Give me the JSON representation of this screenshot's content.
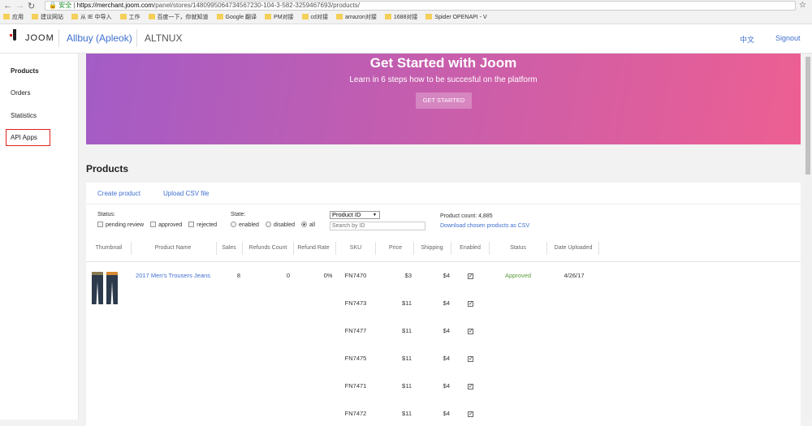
{
  "browser": {
    "security": "安全",
    "url_host": "https://merchant.joom.com",
    "url_path": "/panel/stores/1480995064734567230-104-3-582-3259467693/products/",
    "bookmarks": [
      "应用",
      "建议网站",
      "从 IE 中导入",
      "工作",
      "百度一下，你就知道",
      "Google 翻译",
      "PM对接",
      "cd对接",
      "amazon对接",
      "1688对接",
      "Spider OPENAPI - V"
    ]
  },
  "header": {
    "logo": "JOOM",
    "store": "Allbuy (Apleok)",
    "brand": "ALTNUX",
    "lang": "中文",
    "signout": "Signout"
  },
  "sidebar": {
    "items": [
      {
        "label": "Products"
      },
      {
        "label": "Orders"
      },
      {
        "label": "Statistics"
      },
      {
        "label": "API Apps"
      }
    ]
  },
  "banner": {
    "title": "Get Started with Joom",
    "subtitle": "Learn in 6 steps how to be succesful on the platform",
    "button": "GET STARTED"
  },
  "page_title": "Products",
  "actions": {
    "create": "Create product",
    "upload": "Upload CSV file"
  },
  "filters": {
    "status_label": "Status:",
    "status_options": [
      "pending review",
      "approved",
      "rejected"
    ],
    "state_label": "State:",
    "state_options": [
      "enabled",
      "disabled",
      "all"
    ],
    "state_selected": "all",
    "search_type": "Product ID",
    "search_placeholder": "Search by ID",
    "count": "Product count: 4,885",
    "download": "Download chosen products as CSV"
  },
  "columns": [
    "Thumbnail",
    "Product Name",
    "Sales",
    "Refunds Count",
    "Refund Rate",
    "SKU",
    "Price",
    "Shipping",
    "Enabled",
    "Status",
    "Date Uploaded"
  ],
  "product": {
    "name": "2017 Men's Trousers Jeans",
    "sales": "8",
    "refunds": "0",
    "rate": "0%",
    "status": "Approved",
    "date": "4/26/17"
  },
  "variants": [
    {
      "sku": "FN7470",
      "price": "$3",
      "shipping": "$4",
      "enabled": true
    },
    {
      "sku": "FN7473",
      "price": "$11",
      "shipping": "$4",
      "enabled": true
    },
    {
      "sku": "FN7477",
      "price": "$11",
      "shipping": "$4",
      "enabled": true
    },
    {
      "sku": "FN7475",
      "price": "$11",
      "shipping": "$4",
      "enabled": true
    },
    {
      "sku": "FN7471",
      "price": "$11",
      "shipping": "$4",
      "enabled": true
    },
    {
      "sku": "FN7472",
      "price": "$11",
      "shipping": "$4",
      "enabled": true
    }
  ],
  "colors": {
    "link": "#3f6fd0",
    "approved": "#5a9a3a",
    "highlight": "#e02020"
  }
}
